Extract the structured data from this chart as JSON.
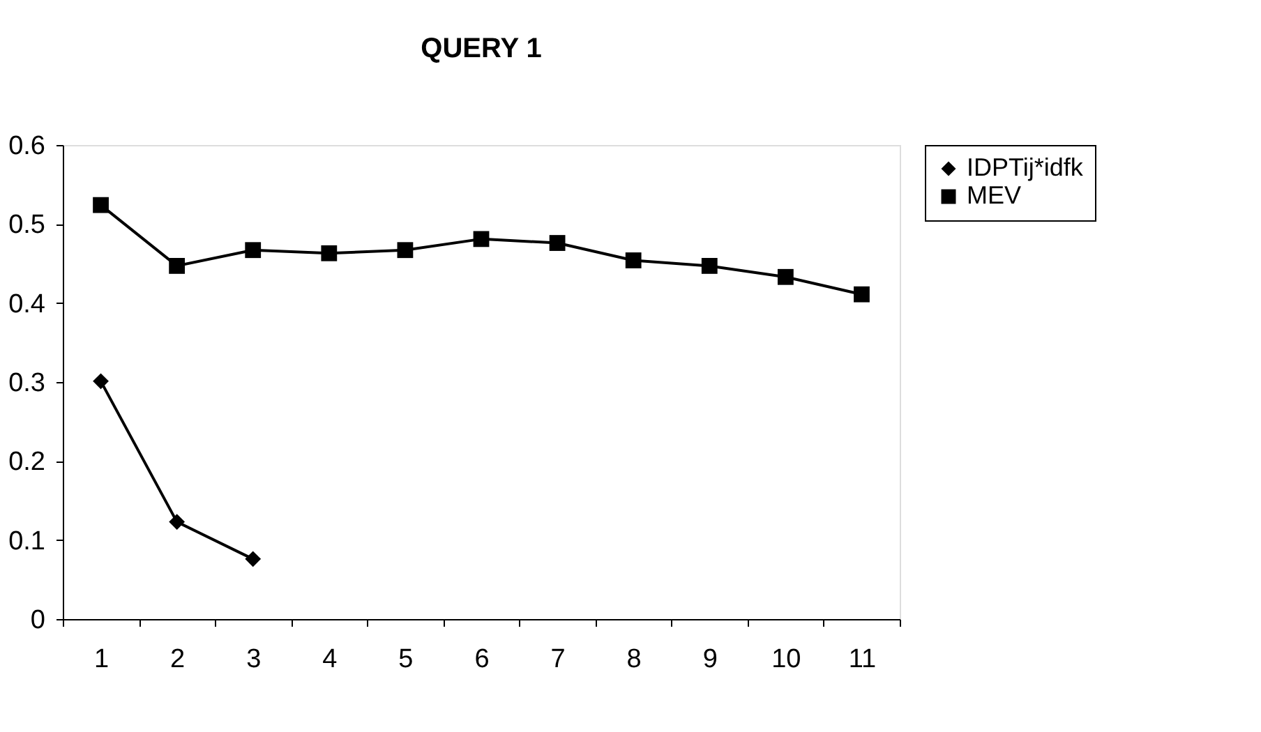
{
  "chart_data": {
    "type": "line",
    "title": "QUERY 1",
    "categories": [
      "1",
      "2",
      "3",
      "4",
      "5",
      "6",
      "7",
      "8",
      "9",
      "10",
      "11"
    ],
    "series": [
      {
        "name": "IDPTij*idfk",
        "color": "#000000",
        "marker": "diamond",
        "values": [
          0.301,
          0.123,
          0.076,
          null,
          null,
          null,
          null,
          null,
          null,
          null,
          null
        ]
      },
      {
        "name": "MEV",
        "color": "#000000",
        "marker": "square",
        "values": [
          0.524,
          0.447,
          0.467,
          0.463,
          0.467,
          0.481,
          0.476,
          0.454,
          0.447,
          0.433,
          0.411
        ]
      }
    ],
    "ylim": [
      0,
      0.6
    ],
    "yticks": [
      0,
      0.1,
      0.2,
      0.3,
      0.4,
      0.5,
      0.6
    ],
    "grid": false,
    "legend": "right",
    "line_style": "solid"
  }
}
